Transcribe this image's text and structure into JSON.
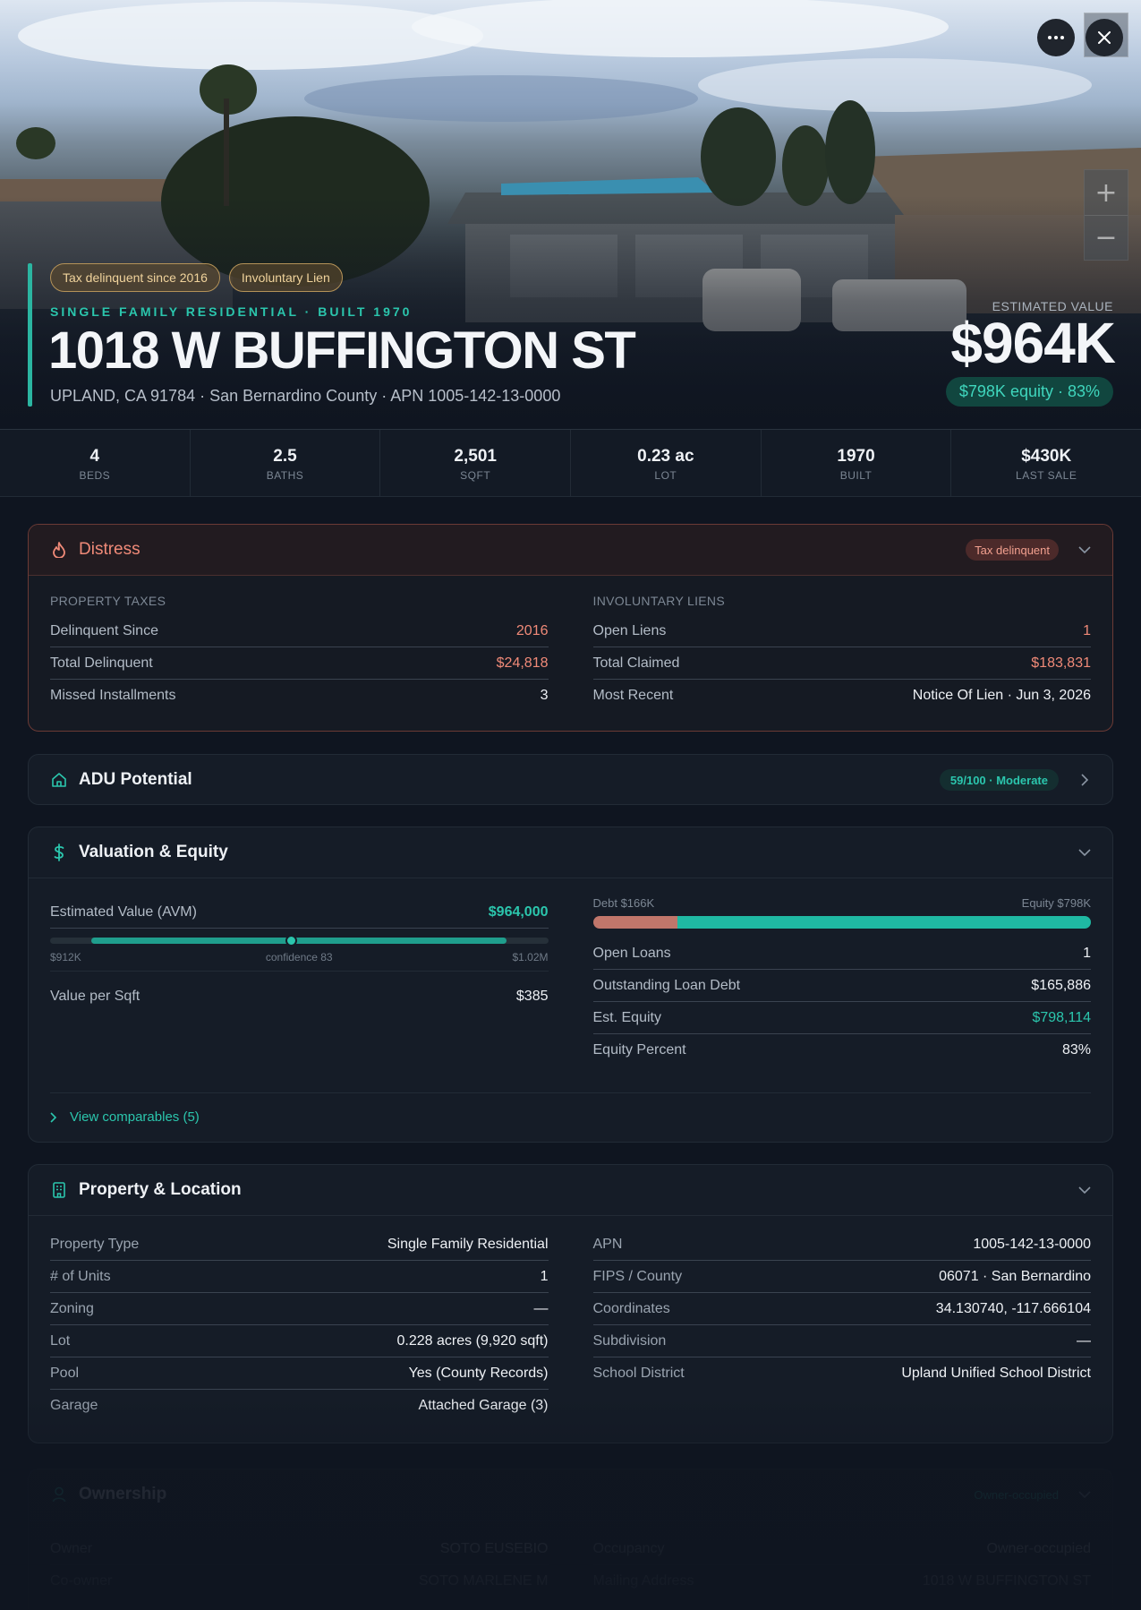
{
  "hero": {
    "badges": [
      "Tax delinquent since 2016",
      "Involuntary Lien"
    ],
    "kicker": "SINGLE FAMILY RESIDENTIAL · BUILT 1970",
    "address": "1018 W BUFFINGTON ST",
    "subline": "UPLAND, CA 91784 · San Bernardino County · APN 1005-142-13-0000",
    "estimated_label": "ESTIMATED VALUE",
    "estimated_value": "$964K",
    "equity_pill": "$798K equity · 83%"
  },
  "controls": {
    "zoom_in": "+",
    "zoom_out": "−"
  },
  "stats": [
    {
      "value": "4",
      "label": "BEDS"
    },
    {
      "value": "2.5",
      "label": "BATHS"
    },
    {
      "value": "2,501",
      "label": "SQFT"
    },
    {
      "value": "0.23 ac",
      "label": "LOT"
    },
    {
      "value": "1970",
      "label": "BUILT"
    },
    {
      "value": "$430K",
      "label": "LAST SALE"
    }
  ],
  "distress": {
    "title": "Distress",
    "badge": "Tax delinquent",
    "taxes": {
      "label": "PROPERTY TAXES",
      "rows": [
        {
          "k": "Delinquent Since",
          "v": "2016"
        },
        {
          "k": "Total Delinquent",
          "v": "$24,818"
        },
        {
          "k": "Missed Installments",
          "v": "3"
        }
      ]
    },
    "liens": {
      "label": "INVOLUNTARY LIENS",
      "rows": [
        {
          "k": "Open Liens",
          "v": "1"
        },
        {
          "k": "Total Claimed",
          "v": "$183,831"
        },
        {
          "k": "Most Recent",
          "v": "Notice Of Lien · Jun 3, 2026"
        }
      ]
    }
  },
  "adu": {
    "title": "ADU Potential",
    "score": "59/100 · Moderate"
  },
  "valuation": {
    "title": "Valuation & Equity",
    "avm_label": "Estimated Value (AVM)",
    "avm_value": "$964,000",
    "range_low": "$912K",
    "range_high": "$1.02M",
    "confidence_text": "confidence 83",
    "range": {
      "low": 912000,
      "high": 1020000,
      "estimate": 964000,
      "confidence": 83
    },
    "per_sqft_label": "Value per Sqft",
    "per_sqft_value": "$385",
    "debt_label": "Debt $166K",
    "equity_label": "Equity $798K",
    "debt_fraction": 0.17,
    "rows": [
      {
        "k": "Open Loans",
        "v": "1"
      },
      {
        "k": "Outstanding Loan Debt",
        "v": "$165,886"
      },
      {
        "k": "Est. Equity",
        "v": "$798,114"
      },
      {
        "k": "Equity Percent",
        "v": "83%"
      }
    ],
    "comps_link": "View comparables (5)"
  },
  "property": {
    "title": "Property & Location",
    "left": [
      {
        "k": "Property Type",
        "v": "Single Family Residential"
      },
      {
        "k": "# of Units",
        "v": "1"
      },
      {
        "k": "Zoning",
        "v": "—"
      },
      {
        "k": "Lot",
        "v": "0.228 acres (9,920 sqft)"
      },
      {
        "k": "Pool",
        "v": "Yes (County Records)"
      },
      {
        "k": "Garage",
        "v": "Attached Garage (3)"
      }
    ],
    "right": [
      {
        "k": "APN",
        "v": "1005-142-13-0000"
      },
      {
        "k": "FIPS / County",
        "v": "06071 · San Bernardino"
      },
      {
        "k": "Coordinates",
        "v": "34.130740, -117.666104"
      },
      {
        "k": "Subdivision",
        "v": "—"
      },
      {
        "k": "School District",
        "v": "Upland Unified School District"
      }
    ]
  },
  "ownership": {
    "title": "Ownership",
    "badge": "Owner-occupied",
    "left": [
      {
        "k": "Owner",
        "v": "SOTO EUSEBIO"
      },
      {
        "k": "Co-owner",
        "v": "SOTO MARLENE M"
      }
    ],
    "right": [
      {
        "k": "Occupancy",
        "v": "Owner-occupied"
      },
      {
        "k": "Mailing Address",
        "v": "1018 W BUFFINGTON ST"
      }
    ]
  },
  "colors": {
    "accent": "#2bc6ad",
    "danger": "#f08a78",
    "background": "#0f1520"
  }
}
